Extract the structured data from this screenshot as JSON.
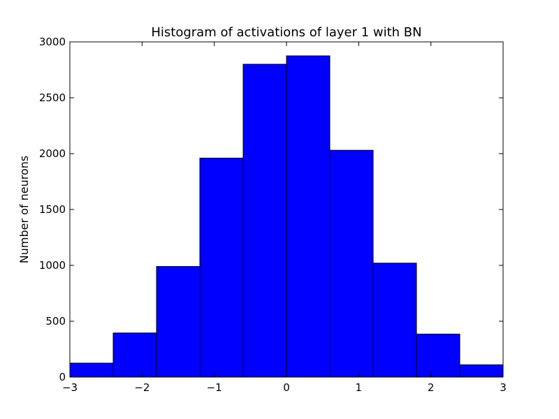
{
  "chart_data": {
    "type": "bar",
    "title": "Histogram of activations of layer 1  with BN",
    "xlabel": "",
    "ylabel": "Number of neurons",
    "bin_edges": [
      -3,
      -2.4,
      -1.8,
      -1.2,
      -0.6,
      0,
      0.6,
      1.2,
      1.8,
      2.4,
      3
    ],
    "values": [
      125,
      395,
      990,
      1960,
      2800,
      2875,
      2030,
      1020,
      385,
      110
    ],
    "xlim": [
      -3,
      3
    ],
    "ylim": [
      0,
      3000
    ],
    "x_ticks": [
      -3,
      -2,
      -1,
      0,
      1,
      2,
      3
    ],
    "x_tick_labels": [
      "−3",
      "−2",
      "−1",
      "0",
      "1",
      "2",
      "3"
    ],
    "y_ticks": [
      0,
      500,
      1000,
      1500,
      2000,
      2500,
      3000
    ],
    "y_tick_labels": [
      "0",
      "500",
      "1000",
      "1500",
      "2000",
      "2500",
      "3000"
    ],
    "bar_color": "#0000ff",
    "edge_color": "#000000",
    "grid": false,
    "legend": "none"
  }
}
